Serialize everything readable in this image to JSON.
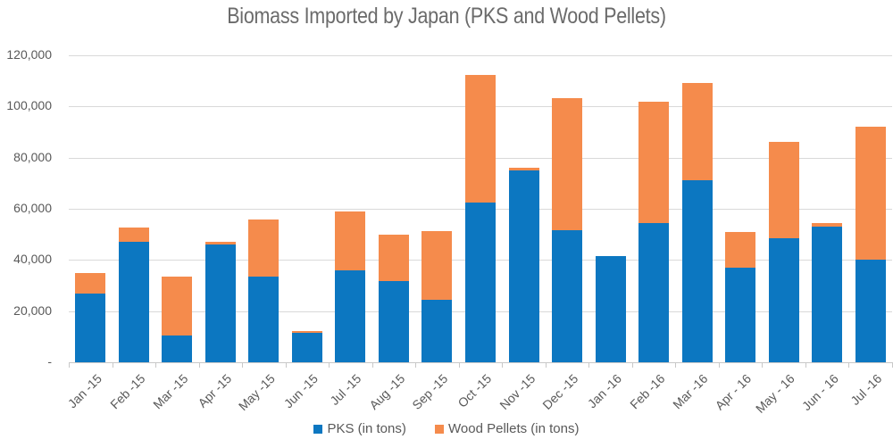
{
  "chart_data": {
    "type": "bar",
    "stacked": true,
    "title": "Biomass Imported by Japan (PKS and Wood Pellets)",
    "xlabel": "",
    "ylabel": "",
    "ylim": [
      0,
      120000
    ],
    "yticks": [
      "-",
      "20,000",
      "40,000",
      "60,000",
      "80,000",
      "100,000",
      "120,000"
    ],
    "grid": true,
    "legend_position": "bottom",
    "categories": [
      "Jan -15",
      "Feb -15",
      "Mar -15",
      "Apr -15",
      "May -15",
      "Jun -15",
      "Jul -15",
      "Aug -15",
      "Sep -15",
      "Oct -15",
      "Nov -15",
      "Dec -15",
      "Jan -16",
      "Feb -16",
      "Mar -16",
      "Apr - 16",
      "May - 16",
      "Jun - 16",
      "Jul -16"
    ],
    "series": [
      {
        "name": "PKS (in tons)",
        "color": "#0C77C1",
        "values": [
          27000,
          47000,
          10500,
          46000,
          33500,
          11500,
          36000,
          31800,
          24400,
          62400,
          75000,
          51700,
          41600,
          54500,
          71300,
          37000,
          48400,
          53000,
          40100
        ]
      },
      {
        "name": "Wood Pellets (in tons)",
        "color": "#F58B4C",
        "values": [
          8000,
          5700,
          23000,
          1000,
          22300,
          800,
          23000,
          18200,
          27000,
          49900,
          1000,
          51600,
          0,
          47500,
          38000,
          14000,
          37900,
          1400,
          52000
        ]
      }
    ]
  },
  "legend": {
    "items": [
      {
        "label": "PKS (in tons)",
        "color": "#0C77C1"
      },
      {
        "label": "Wood Pellets (in tons)",
        "color": "#F58B4C"
      }
    ]
  }
}
